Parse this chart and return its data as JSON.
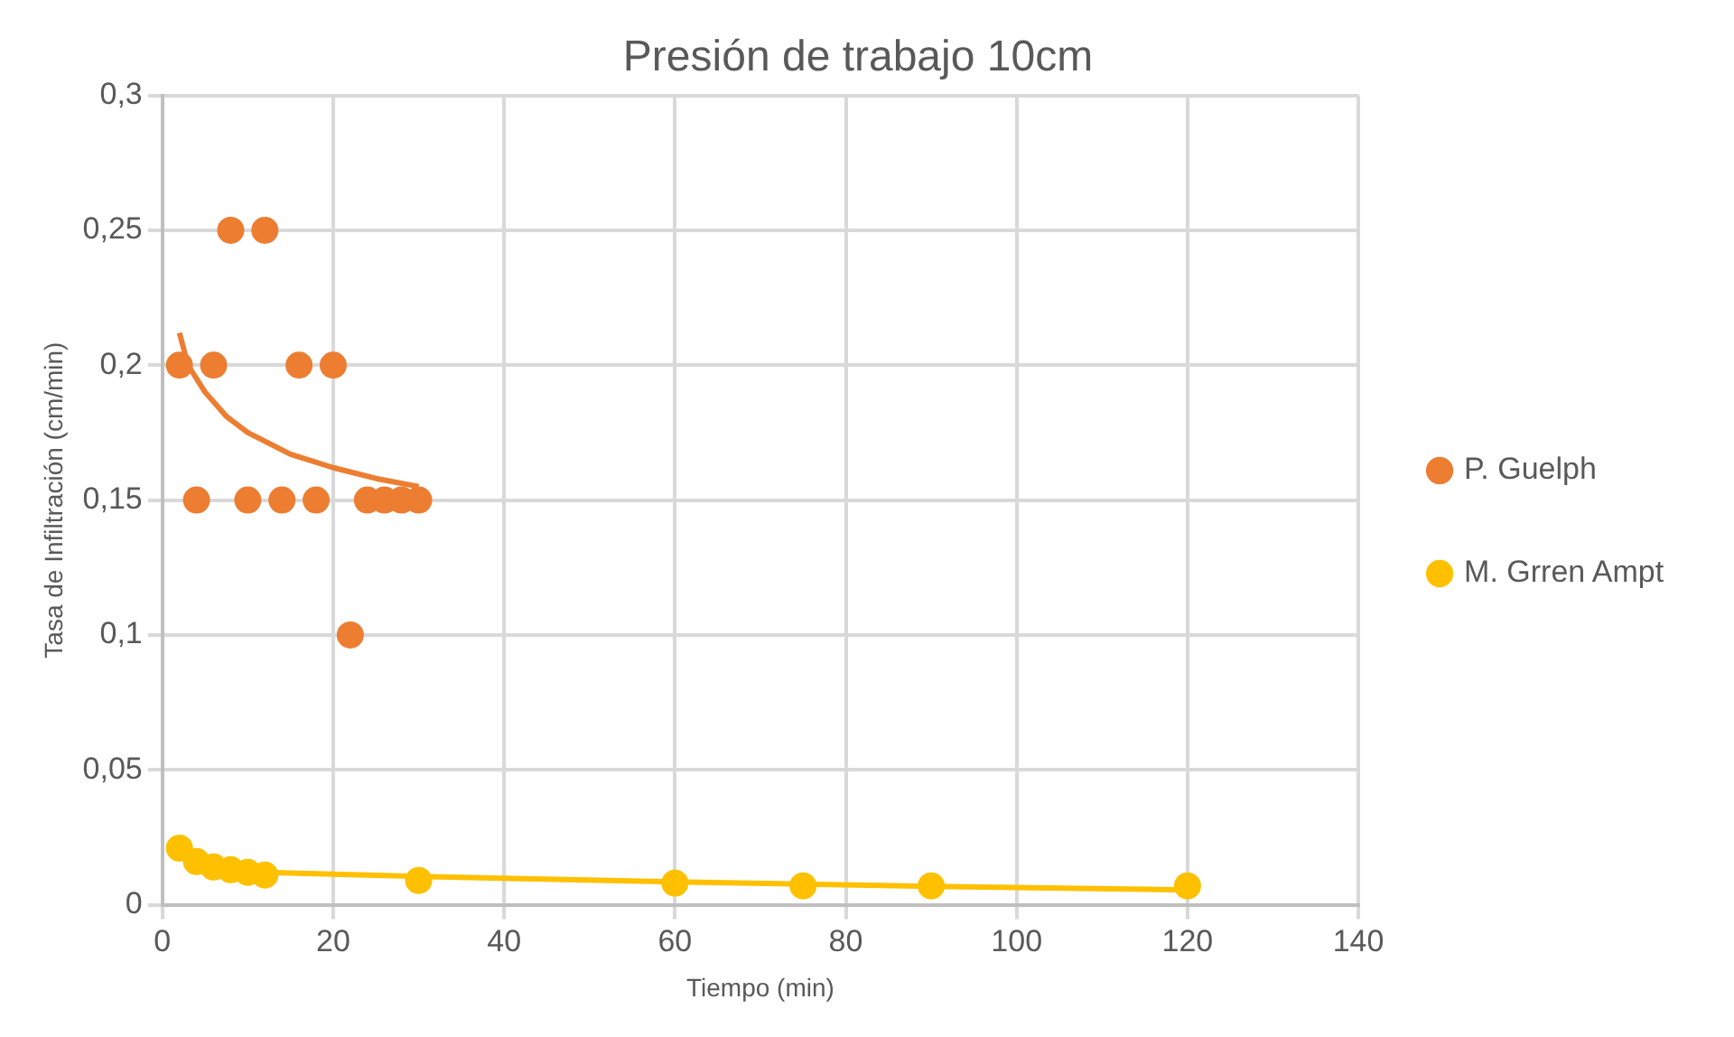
{
  "chart_data": {
    "type": "scatter",
    "title": "Presión de trabajo 10cm",
    "xlabel": "Tiempo (min)",
    "ylabel": "Tasa de Infiltración (cm/min)",
    "series": [
      {
        "name": "P. Guelph",
        "color": "#ed7d31",
        "x": [
          2,
          4,
          6,
          8,
          10,
          12,
          14,
          16,
          18,
          20,
          22,
          24,
          26,
          28,
          30
        ],
        "values": [
          0.2,
          0.15,
          0.2,
          0.25,
          0.15,
          0.25,
          0.15,
          0.2,
          0.15,
          0.2,
          0.1,
          0.15,
          0.15,
          0.15,
          0.15
        ]
      },
      {
        "name": "M. Grren Ampt",
        "color": "#ffc000",
        "x": [
          2,
          4,
          6,
          8,
          10,
          12,
          30,
          60,
          75,
          90,
          120
        ],
        "values": [
          0.021,
          0.016,
          0.014,
          0.013,
          0.012,
          0.011,
          0.009,
          0.008,
          0.007,
          0.007,
          0.007
        ]
      },
      {
        "type": "line",
        "color": "#ed7d31",
        "marker": "none",
        "x": [
          2,
          3,
          5,
          7.5,
          10,
          15,
          20,
          25,
          30
        ],
        "values": [
          0.212,
          0.2,
          0.19,
          0.181,
          0.175,
          0.167,
          0.162,
          0.158,
          0.155
        ]
      },
      {
        "type": "line",
        "color": "#ffc000",
        "marker": "none",
        "x": [
          12,
          30,
          60,
          90,
          120
        ],
        "values": [
          0.012,
          0.0105,
          0.0085,
          0.0068,
          0.0055
        ]
      }
    ],
    "xlim": [
      0,
      140
    ],
    "xticks": [
      0,
      20,
      40,
      60,
      80,
      100,
      120,
      140
    ],
    "ylim": [
      0,
      0.3
    ],
    "yticks": [
      0,
      {
        "value": 0.05,
        "label": "0,05"
      },
      {
        "value": 0.1,
        "label": "0,1"
      },
      {
        "value": 0.15,
        "label": "0,15"
      },
      {
        "value": 0.2,
        "label": "0,2"
      },
      {
        "value": 0.25,
        "label": "0,25"
      },
      {
        "value": 0.3,
        "label": "0,3"
      }
    ],
    "grid": true,
    "legend": "right",
    "marker": "circle"
  }
}
